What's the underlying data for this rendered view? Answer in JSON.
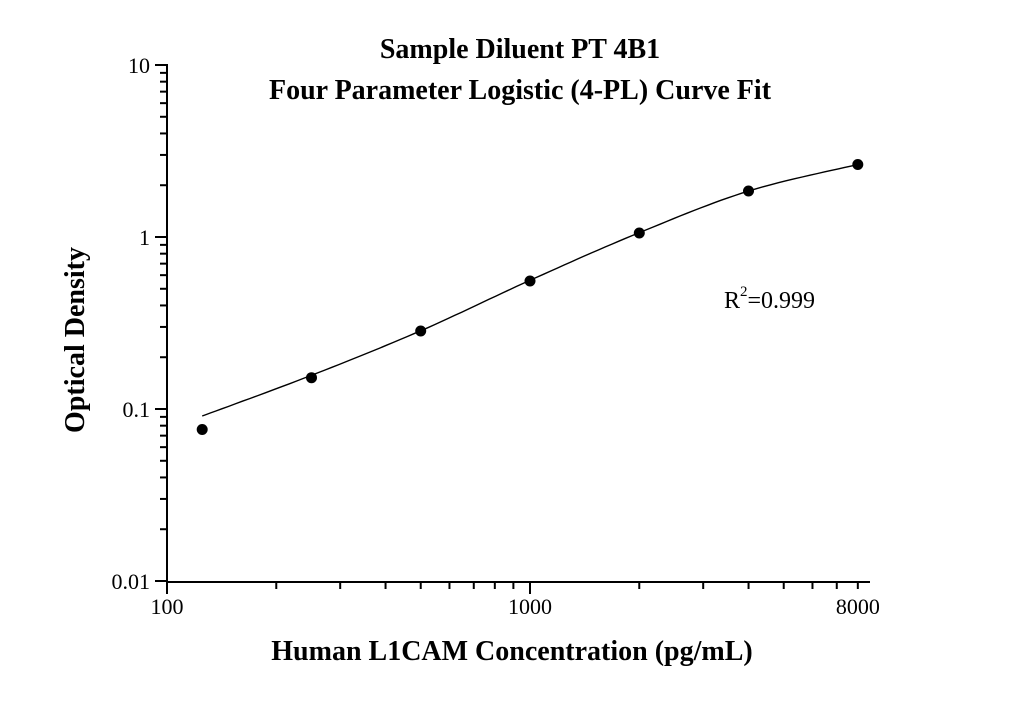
{
  "chart_data": {
    "type": "scatter",
    "title_line1": "Sample Diluent PT 4B1",
    "title_line2": "Four Parameter Logistic (4-PL) Curve Fit",
    "xlabel": "Human L1CAM Concentration (pg/mL)",
    "ylabel": "Optical Density",
    "x_scale": "log",
    "y_scale": "log",
    "xlim": [
      100,
      8650
    ],
    "ylim": [
      0.01,
      10
    ],
    "grid": false,
    "legend": "none",
    "x": [
      125,
      250,
      500,
      1000,
      2000,
      4000,
      8000
    ],
    "y": [
      0.076,
      0.152,
      0.284,
      0.555,
      1.055,
      1.85,
      2.64
    ],
    "fit_curve": {
      "x": [
        125,
        250,
        500,
        1000,
        2000,
        4000,
        8000
      ],
      "y": [
        0.091,
        0.157,
        0.285,
        0.56,
        1.06,
        1.85,
        2.64
      ]
    },
    "x_major_ticks": [
      100,
      1000
    ],
    "x_tick_labels": [
      {
        "value": 100,
        "label": "100"
      },
      {
        "value": 1000,
        "label": "1000"
      },
      {
        "value": 8000,
        "label": "8000"
      }
    ],
    "y_tick_labels": [
      {
        "value": 10,
        "label": "10"
      },
      {
        "value": 1,
        "label": "1"
      },
      {
        "value": 0.1,
        "label": "0.1"
      },
      {
        "value": 0.01,
        "label": "0.01"
      }
    ],
    "annotation": {
      "text": "R²=0.999",
      "base": "R",
      "sup": "2",
      "rest": "=0.999"
    },
    "colors": {
      "ink": "#000000",
      "background": "#ffffff"
    }
  }
}
